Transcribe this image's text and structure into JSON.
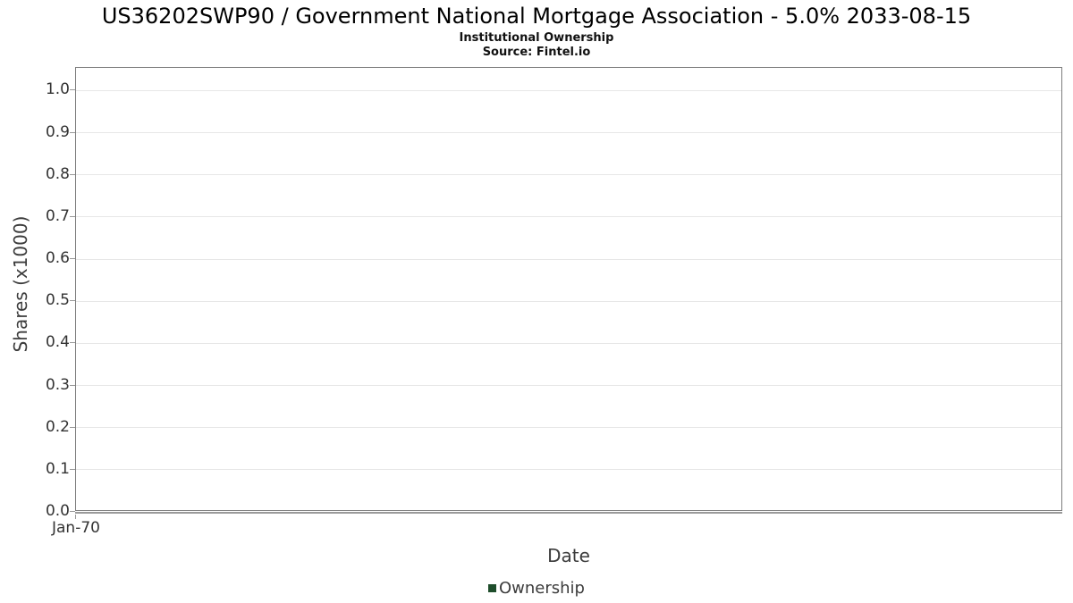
{
  "header": {
    "title": "US36202SWP90 / Government National Mortgage Association - 5.0% 2033-08-15",
    "subtitle": "Institutional Ownership",
    "source": "Source: Fintel.io"
  },
  "chart_data": {
    "type": "line",
    "title": "US36202SWP90 / Government National Mortgage Association - 5.0% 2033-08-15",
    "subtitle": "Institutional Ownership",
    "source": "Source: Fintel.io",
    "xlabel": "Date",
    "ylabel": "Shares (x1000)",
    "x_tick_labels": [
      "Jan-70"
    ],
    "y_tick_labels": [
      "0.0",
      "0.1",
      "0.2",
      "0.3",
      "0.4",
      "0.5",
      "0.6",
      "0.7",
      "0.8",
      "0.9",
      "1.0"
    ],
    "y_tick_values": [
      0,
      0.1,
      0.2,
      0.3,
      0.4,
      0.5,
      0.6,
      0.7,
      0.8,
      0.9,
      1.0
    ],
    "ylim": [
      0,
      1.054
    ],
    "grid": true,
    "legend_position": "bottom",
    "series": [
      {
        "name": "Ownership",
        "color": "#1e4d2b",
        "x": [],
        "values": []
      }
    ]
  },
  "colors": {
    "legend_marker": "#1e4d2b",
    "plot_border": "#7d7d7d",
    "gridline": "#e7e7e7",
    "axis_line": "#9a9a9a",
    "tick": "#999999",
    "tick_label": "#333333",
    "axis_label": "#3c3c3c",
    "title": "#000000",
    "background": "#ffffff"
  }
}
